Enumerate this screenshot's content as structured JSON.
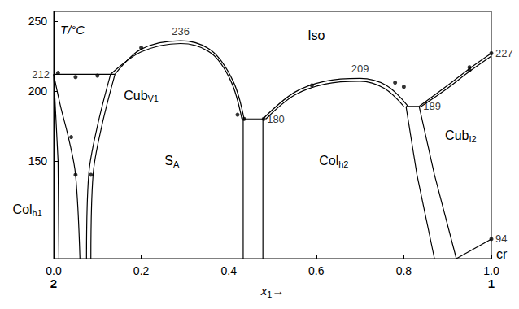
{
  "chart_data": {
    "type": "phase_diagram",
    "x_label": {
      "text": "x",
      "sub": "1",
      "suffix": "→"
    },
    "y_label": "T/°C",
    "xlim": [
      0,
      1
    ],
    "xticks": [
      {
        "value": 0,
        "label": "0.0"
      },
      {
        "value": 0.2,
        "label": "0.2"
      },
      {
        "value": 0.4,
        "label": "0.4"
      },
      {
        "value": 0.6,
        "label": "0.6"
      },
      {
        "value": 0.8,
        "label": "0.8"
      },
      {
        "value": 1,
        "label": "1.0"
      }
    ],
    "ylim": [
      80,
      257
    ],
    "yticks": [
      150,
      200,
      250
    ],
    "component_labels": [
      {
        "text": "2",
        "x": 0
      },
      {
        "text": "1",
        "x": 1
      }
    ],
    "boundaries": [
      [
        [
          0,
          212
        ],
        [
          0.14,
          212
        ]
      ],
      [
        [
          0,
          212
        ],
        [
          0.01,
          150
        ],
        [
          0.012,
          80
        ]
      ],
      [
        [
          0,
          212
        ],
        [
          0.015,
          190
        ],
        [
          0.035,
          165
        ],
        [
          0.05,
          140
        ],
        [
          0.06,
          80
        ]
      ],
      [
        [
          0.13,
          212
        ],
        [
          0.1,
          175
        ],
        [
          0.08,
          140
        ],
        [
          0.075,
          80
        ]
      ],
      [
        [
          0.14,
          212
        ],
        [
          0.11,
          175
        ],
        [
          0.09,
          140
        ],
        [
          0.085,
          80
        ]
      ],
      [
        [
          0.14,
          212
        ],
        [
          0.2,
          230
        ],
        [
          0.29,
          236
        ],
        [
          0.36,
          229
        ],
        [
          0.41,
          207
        ],
        [
          0.435,
          180
        ]
      ],
      [
        [
          0.13,
          212
        ],
        [
          0.2,
          228
        ],
        [
          0.29,
          234
        ],
        [
          0.36,
          227
        ],
        [
          0.405,
          207
        ],
        [
          0.43,
          180
        ]
      ],
      [
        [
          0.433,
          180
        ],
        [
          0.478,
          180
        ]
      ],
      [
        [
          0.433,
          180
        ],
        [
          0.433,
          80
        ]
      ],
      [
        [
          0.478,
          180
        ],
        [
          0.478,
          80
        ]
      ],
      [
        [
          0.478,
          180
        ],
        [
          0.55,
          199
        ],
        [
          0.62,
          207
        ],
        [
          0.7,
          209
        ],
        [
          0.76,
          204
        ],
        [
          0.81,
          189
        ]
      ],
      [
        [
          0.485,
          180
        ],
        [
          0.55,
          197
        ],
        [
          0.62,
          205
        ],
        [
          0.7,
          207
        ],
        [
          0.755,
          202
        ],
        [
          0.8,
          189
        ]
      ],
      [
        [
          0.805,
          189
        ],
        [
          0.835,
          189
        ]
      ],
      [
        [
          0.805,
          189
        ],
        [
          0.83,
          140
        ],
        [
          0.87,
          80
        ]
      ],
      [
        [
          0.835,
          189
        ],
        [
          0.87,
          140
        ],
        [
          0.92,
          80
        ]
      ],
      [
        [
          0.835,
          189
        ],
        [
          0.9,
          204
        ],
        [
          0.95,
          216
        ],
        [
          1,
          227
        ]
      ],
      [
        [
          0.84,
          189
        ],
        [
          0.9,
          202
        ],
        [
          0.95,
          214
        ],
        [
          1,
          225
        ]
      ],
      [
        [
          0.92,
          80
        ],
        [
          1,
          94
        ]
      ]
    ],
    "points": [
      [
        0.01,
        213
      ],
      [
        0.05,
        210
      ],
      [
        0.1,
        211
      ],
      [
        0.2,
        231
      ],
      [
        0.42,
        183
      ],
      [
        0.59,
        204
      ],
      [
        0.78,
        206
      ],
      [
        0.8,
        203
      ],
      [
        0.95,
        215
      ],
      [
        0.95,
        217
      ],
      [
        0.04,
        167
      ],
      [
        0.05,
        140
      ],
      [
        0.085,
        140
      ],
      [
        1,
        227
      ],
      [
        1,
        94
      ],
      [
        0.435,
        180
      ],
      [
        0.48,
        180
      ]
    ],
    "special_points": [
      {
        "x": 0,
        "y": 212
      },
      {
        "x": 0.29,
        "y": 236
      },
      {
        "x": 0.478,
        "y": 180
      },
      {
        "x": 0.7,
        "y": 209
      },
      {
        "x": 0.835,
        "y": 189
      },
      {
        "x": 1,
        "y": 227
      },
      {
        "x": 1,
        "y": 94
      }
    ],
    "regions": [
      {
        "text": "Iso",
        "x": 0.6,
        "y": 240
      },
      {
        "text": "S",
        "sub": "A",
        "x": 0.27,
        "y": 150
      },
      {
        "text": "Col",
        "sub": "h2",
        "x": 0.64,
        "y": 150
      },
      {
        "text": "Cub",
        "sub": "I2",
        "x": 0.93,
        "y": 168
      },
      {
        "text": "Cub",
        "sub": "V1",
        "x": 0.2,
        "y": 197
      },
      {
        "text": "Col",
        "sub": "h1",
        "x": -0.06,
        "y": 115
      },
      {
        "text": "cr",
        "x": 1,
        "y": 83
      }
    ]
  }
}
